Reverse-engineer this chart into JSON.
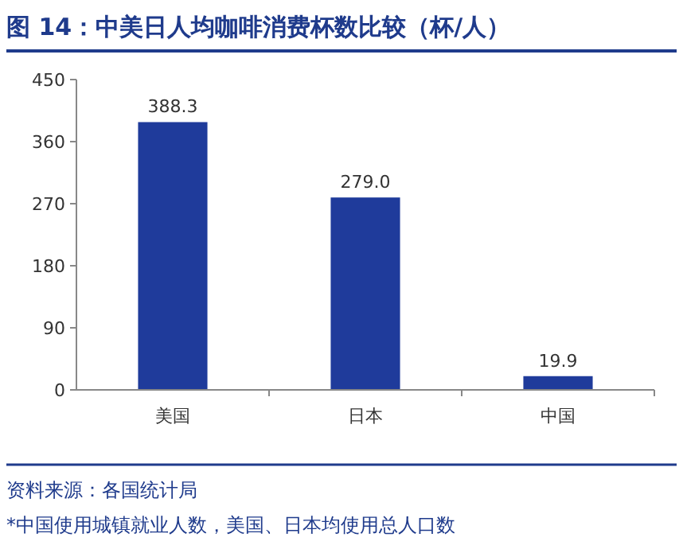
{
  "chart_data": {
    "type": "bar",
    "title": "图 14：中美日人均咖啡消费杯数比较（杯/人）",
    "categories": [
      "美国",
      "日本",
      "中国"
    ],
    "values": [
      388.3,
      279.0,
      19.9
    ],
    "value_labels": [
      "388.3",
      "279.0",
      "19.9"
    ],
    "color": "#1f3b9b",
    "ylim": [
      0,
      450
    ],
    "yticks": [
      0,
      90,
      180,
      270,
      360,
      450
    ],
    "grid": false,
    "annotations": [
      "资料来源：各国统计局",
      "*中国使用城镇就业人数，美国、日本均使用总人口数"
    ]
  }
}
